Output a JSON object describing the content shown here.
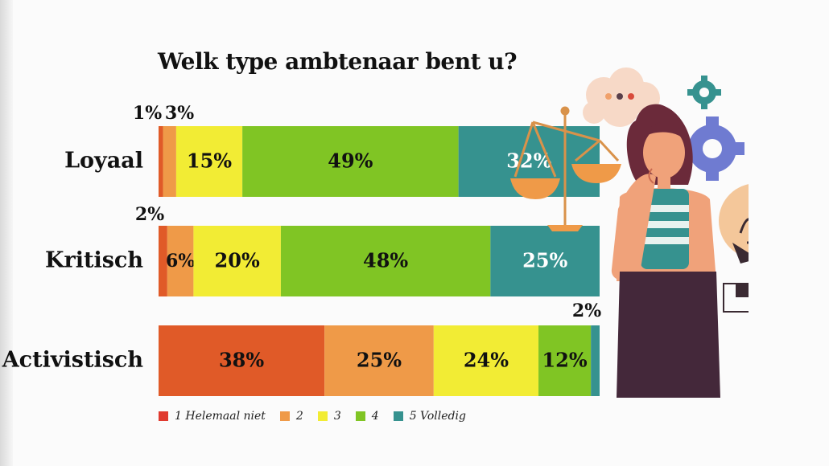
{
  "chart_data": {
    "type": "bar",
    "orientation": "horizontal",
    "stacked": true,
    "title": "Welk type ambtenaar bent u?",
    "categories": [
      "Loyaal",
      "Kritisch",
      "Activistisch"
    ],
    "series": [
      {
        "name": "1 Helemaal niet",
        "color": "#e05a28",
        "values": [
          1,
          2,
          38
        ]
      },
      {
        "name": "2",
        "color": "#ef9a48",
        "values": [
          3,
          6,
          25
        ]
      },
      {
        "name": "3",
        "color": "#f2ec34",
        "values": [
          15,
          20,
          24
        ]
      },
      {
        "name": "4",
        "color": "#80c524",
        "values": [
          49,
          48,
          12
        ]
      },
      {
        "name": "5 Volledig",
        "color": "#36928f",
        "values": [
          32,
          25,
          2
        ]
      }
    ],
    "value_suffix": "%",
    "legend_position": "bottom",
    "grid": false
  },
  "colors": {
    "legend_swatch_1": "#e03a2f"
  }
}
